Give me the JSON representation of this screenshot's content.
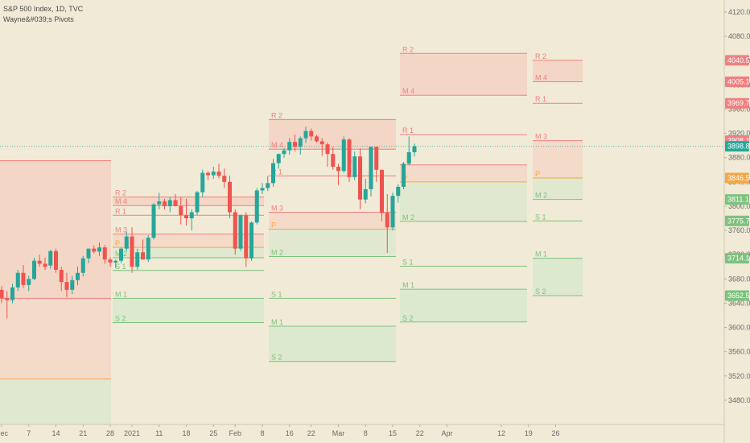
{
  "header": {
    "symbol_line": "S&P 500 Index, 1D, TVC",
    "indicator_line": "Wayne&#039;s Pivots"
  },
  "colors": {
    "background": "#f0ead6",
    "up_candle": "#26a69a",
    "down_candle": "#ef5350",
    "resistance": "#f08080",
    "support": "#7dc27d",
    "pivot": "#f5a742",
    "resistance_fill": "#f5cfc0",
    "support_fill": "#d6e8cc",
    "last_price_line": "#26a69a"
  },
  "chart_data": {
    "type": "candlestick",
    "y_axis": {
      "min": 3440,
      "max": 4140,
      "ticks": [
        3480,
        3520,
        3560,
        3600,
        3640,
        3680,
        3720,
        3760,
        3800,
        3840,
        3880,
        3920,
        3960,
        4000,
        4040,
        4080,
        4120
      ],
      "tick_labels": [
        "3480.0",
        "3520.0",
        "3560.0",
        "3600.0",
        "3640.0",
        "3680.0",
        "3720.0",
        "3760.0",
        "3800.0",
        "3840.0",
        "3880.0",
        "3920.0",
        "3960.0",
        "4000.0",
        "4040.0",
        "4080.0",
        "4120.0"
      ]
    },
    "x_axis": {
      "tick_labels": [
        "Dec",
        "7",
        "14",
        "21",
        "28",
        "2021",
        "11",
        "18",
        "25",
        "Feb",
        "8",
        "16",
        "22",
        "Mar",
        "8",
        "15",
        "22",
        "Apr",
        "12",
        "19",
        "26"
      ],
      "tick_index": [
        0,
        5,
        10,
        15,
        20,
        24,
        29,
        34,
        39,
        43,
        48,
        53,
        57,
        62,
        67,
        72,
        77,
        82,
        92,
        97,
        102
      ]
    },
    "candles": [
      {
        "o": 3662,
        "h": 3668,
        "l": 3640,
        "c": 3648
      },
      {
        "o": 3648,
        "h": 3660,
        "l": 3615,
        "c": 3645
      },
      {
        "o": 3645,
        "h": 3672,
        "l": 3640,
        "c": 3666
      },
      {
        "o": 3666,
        "h": 3695,
        "l": 3660,
        "c": 3690
      },
      {
        "o": 3690,
        "h": 3703,
        "l": 3665,
        "c": 3670
      },
      {
        "o": 3670,
        "h": 3685,
        "l": 3660,
        "c": 3680
      },
      {
        "o": 3680,
        "h": 3715,
        "l": 3678,
        "c": 3710
      },
      {
        "o": 3710,
        "h": 3720,
        "l": 3700,
        "c": 3705
      },
      {
        "o": 3705,
        "h": 3715,
        "l": 3695,
        "c": 3700
      },
      {
        "o": 3702,
        "h": 3728,
        "l": 3697,
        "c": 3726
      },
      {
        "o": 3726,
        "h": 3730,
        "l": 3690,
        "c": 3695
      },
      {
        "o": 3695,
        "h": 3700,
        "l": 3660,
        "c": 3675
      },
      {
        "o": 3675,
        "h": 3690,
        "l": 3650,
        "c": 3662
      },
      {
        "o": 3662,
        "h": 3685,
        "l": 3655,
        "c": 3678
      },
      {
        "o": 3678,
        "h": 3700,
        "l": 3670,
        "c": 3690
      },
      {
        "o": 3690,
        "h": 3718,
        "l": 3684,
        "c": 3714
      },
      {
        "o": 3714,
        "h": 3730,
        "l": 3706,
        "c": 3730
      },
      {
        "o": 3730,
        "h": 3735,
        "l": 3722,
        "c": 3725
      },
      {
        "o": 3725,
        "h": 3740,
        "l": 3718,
        "c": 3732
      },
      {
        "o": 3732,
        "h": 3736,
        "l": 3705,
        "c": 3712
      },
      {
        "o": 3712,
        "h": 3716,
        "l": 3700,
        "c": 3707
      },
      {
        "o": 3707,
        "h": 3712,
        "l": 3698,
        "c": 3710
      },
      {
        "o": 3710,
        "h": 3732,
        "l": 3706,
        "c": 3730
      },
      {
        "o": 3730,
        "h": 3758,
        "l": 3726,
        "c": 3750
      },
      {
        "o": 3750,
        "h": 3765,
        "l": 3690,
        "c": 3700
      },
      {
        "o": 3700,
        "h": 3730,
        "l": 3695,
        "c": 3724
      },
      {
        "o": 3724,
        "h": 3745,
        "l": 3715,
        "c": 3712
      },
      {
        "o": 3712,
        "h": 3752,
        "l": 3708,
        "c": 3748
      },
      {
        "o": 3748,
        "h": 3805,
        "l": 3745,
        "c": 3803
      },
      {
        "o": 3803,
        "h": 3822,
        "l": 3795,
        "c": 3808
      },
      {
        "o": 3808,
        "h": 3812,
        "l": 3795,
        "c": 3800
      },
      {
        "o": 3800,
        "h": 3815,
        "l": 3790,
        "c": 3810
      },
      {
        "o": 3810,
        "h": 3820,
        "l": 3800,
        "c": 3800
      },
      {
        "o": 3800,
        "h": 3815,
        "l": 3770,
        "c": 3785
      },
      {
        "o": 3785,
        "h": 3812,
        "l": 3768,
        "c": 3780
      },
      {
        "o": 3780,
        "h": 3795,
        "l": 3760,
        "c": 3790
      },
      {
        "o": 3790,
        "h": 3825,
        "l": 3785,
        "c": 3823
      },
      {
        "o": 3823,
        "h": 3860,
        "l": 3815,
        "c": 3855
      },
      {
        "o": 3855,
        "h": 3858,
        "l": 3843,
        "c": 3851
      },
      {
        "o": 3851,
        "h": 3865,
        "l": 3845,
        "c": 3857
      },
      {
        "o": 3857,
        "h": 3870,
        "l": 3846,
        "c": 3850
      },
      {
        "o": 3850,
        "h": 3862,
        "l": 3830,
        "c": 3840
      },
      {
        "o": 3840,
        "h": 3850,
        "l": 3780,
        "c": 3790
      },
      {
        "o": 3790,
        "h": 3795,
        "l": 3720,
        "c": 3730
      },
      {
        "o": 3730,
        "h": 3786,
        "l": 3726,
        "c": 3785
      },
      {
        "o": 3785,
        "h": 3790,
        "l": 3700,
        "c": 3714
      },
      {
        "o": 3714,
        "h": 3775,
        "l": 3710,
        "c": 3773
      },
      {
        "o": 3773,
        "h": 3830,
        "l": 3770,
        "c": 3826
      },
      {
        "o": 3826,
        "h": 3838,
        "l": 3820,
        "c": 3830
      },
      {
        "o": 3830,
        "h": 3850,
        "l": 3825,
        "c": 3838
      },
      {
        "o": 3838,
        "h": 3878,
        "l": 3832,
        "c": 3871
      },
      {
        "o": 3871,
        "h": 3887,
        "l": 3862,
        "c": 3886
      },
      {
        "o": 3886,
        "h": 3896,
        "l": 3880,
        "c": 3892
      },
      {
        "o": 3892,
        "h": 3912,
        "l": 3885,
        "c": 3906
      },
      {
        "o": 3906,
        "h": 3918,
        "l": 3890,
        "c": 3898
      },
      {
        "o": 3898,
        "h": 3915,
        "l": 3885,
        "c": 3912
      },
      {
        "o": 3912,
        "h": 3931,
        "l": 3904,
        "c": 3924
      },
      {
        "o": 3924,
        "h": 3928,
        "l": 3908,
        "c": 3915
      },
      {
        "o": 3915,
        "h": 3918,
        "l": 3905,
        "c": 3907
      },
      {
        "o": 3907,
        "h": 3912,
        "l": 3883,
        "c": 3902
      },
      {
        "o": 3902,
        "h": 3905,
        "l": 3865,
        "c": 3886
      },
      {
        "o": 3886,
        "h": 3898,
        "l": 3860,
        "c": 3865
      },
      {
        "o": 3865,
        "h": 3870,
        "l": 3835,
        "c": 3858
      },
      {
        "o": 3858,
        "h": 3915,
        "l": 3855,
        "c": 3910
      },
      {
        "o": 3910,
        "h": 3912,
        "l": 3840,
        "c": 3848
      },
      {
        "o": 3848,
        "h": 3890,
        "l": 3843,
        "c": 3882
      },
      {
        "o": 3882,
        "h": 3895,
        "l": 3795,
        "c": 3811
      },
      {
        "o": 3811,
        "h": 3845,
        "l": 3805,
        "c": 3828
      },
      {
        "o": 3828,
        "h": 3892,
        "l": 3816,
        "c": 3898
      },
      {
        "o": 3898,
        "h": 3895,
        "l": 3840,
        "c": 3860
      },
      {
        "o": 3860,
        "h": 3856,
        "l": 3775,
        "c": 3789
      },
      {
        "o": 3789,
        "h": 3820,
        "l": 3723,
        "c": 3765
      },
      {
        "o": 3765,
        "h": 3822,
        "l": 3760,
        "c": 3817
      },
      {
        "o": 3817,
        "h": 3836,
        "l": 3806,
        "c": 3832
      },
      {
        "o": 3832,
        "h": 3873,
        "l": 3828,
        "c": 3870
      },
      {
        "o": 3870,
        "h": 3915,
        "l": 3868,
        "c": 3889
      },
      {
        "o": 3889,
        "h": 3903,
        "l": 3882,
        "c": 3898.8
      }
    ],
    "pivot_periods": [
      {
        "levels": [
          {
            "label": "",
            "value": 3875,
            "kind": "res"
          },
          {
            "label": "",
            "value": 3648,
            "kind": "res"
          },
          {
            "label": "",
            "value": 3515,
            "kind": "piv"
          }
        ]
      },
      {
        "levels": [
          {
            "label": "R 2",
            "value": 3815,
            "kind": "res"
          },
          {
            "label": "M 4",
            "value": 3801,
            "kind": "res"
          },
          {
            "label": "R 1",
            "value": 3785,
            "kind": "res"
          },
          {
            "label": "M 3",
            "value": 3754,
            "kind": "res"
          },
          {
            "label": "P",
            "value": 3732,
            "kind": "piv"
          },
          {
            "label": "M 2",
            "value": 3715,
            "kind": "sup"
          },
          {
            "label": "S 1",
            "value": 3694,
            "kind": "sup"
          },
          {
            "label": "M 1",
            "value": 3648,
            "kind": "sup"
          },
          {
            "label": "S 2",
            "value": 3608,
            "kind": "sup"
          }
        ]
      },
      {
        "levels": [
          {
            "label": "R 2",
            "value": 3943,
            "kind": "res"
          },
          {
            "label": "M 4",
            "value": 3894,
            "kind": "res"
          },
          {
            "label": "R 1",
            "value": 3850,
            "kind": "res"
          },
          {
            "label": "M 3",
            "value": 3790,
            "kind": "res"
          },
          {
            "label": "P",
            "value": 3762,
            "kind": "piv"
          },
          {
            "label": "M 2",
            "value": 3717,
            "kind": "sup"
          },
          {
            "label": "S 1",
            "value": 3648,
            "kind": "sup"
          },
          {
            "label": "M 1",
            "value": 3602,
            "kind": "sup"
          },
          {
            "label": "S 2",
            "value": 3544,
            "kind": "sup"
          }
        ]
      },
      {
        "levels": [
          {
            "label": "R 2",
            "value": 4052,
            "kind": "res"
          },
          {
            "label": "M 4",
            "value": 3983,
            "kind": "res"
          },
          {
            "label": "R 1",
            "value": 3918,
            "kind": "res"
          },
          {
            "label": "",
            "value": 3868,
            "kind": "res"
          },
          {
            "label": "P",
            "value": 3840,
            "kind": "piv"
          },
          {
            "label": "M 2",
            "value": 3775,
            "kind": "sup"
          },
          {
            "label": "S 1",
            "value": 3701,
            "kind": "sup"
          },
          {
            "label": "M 1",
            "value": 3663,
            "kind": "sup"
          },
          {
            "label": "S 2",
            "value": 3609,
            "kind": "sup"
          }
        ]
      },
      {
        "levels": [
          {
            "label": "R 2",
            "value": 4040.5,
            "kind": "res"
          },
          {
            "label": "M 4",
            "value": 4005.1,
            "kind": "res"
          },
          {
            "label": "R 1",
            "value": 3969.7,
            "kind": "res"
          },
          {
            "label": "M 3",
            "value": 3908.1,
            "kind": "res"
          },
          {
            "label": "P",
            "value": 3846.5,
            "kind": "piv"
          },
          {
            "label": "M 2",
            "value": 3811.1,
            "kind": "sup"
          },
          {
            "label": "S 1",
            "value": 3775.7,
            "kind": "sup"
          },
          {
            "label": "M 1",
            "value": 3714.1,
            "kind": "sup"
          },
          {
            "label": "S 2",
            "value": 3652.5,
            "kind": "sup"
          }
        ]
      }
    ],
    "price_tags": [
      {
        "value": 4040.5,
        "label": "4040.5",
        "kind": "res"
      },
      {
        "value": 4005.1,
        "label": "4005.1",
        "kind": "res"
      },
      {
        "value": 3969.7,
        "label": "3969.7",
        "kind": "res"
      },
      {
        "value": 3908.1,
        "label": "3908.1",
        "kind": "res"
      },
      {
        "value": 3898.8,
        "label": "3898.8",
        "kind": "last"
      },
      {
        "value": 3846.5,
        "label": "3846.5",
        "kind": "piv"
      },
      {
        "value": 3811.1,
        "label": "3811.1",
        "kind": "sup"
      },
      {
        "value": 3775.7,
        "label": "3775.7",
        "kind": "sup"
      },
      {
        "value": 3714.1,
        "label": "3714.1",
        "kind": "sup"
      },
      {
        "value": 3652.5,
        "label": "3652.5",
        "kind": "sup"
      }
    ],
    "last_price": 3898.8,
    "grid": false
  }
}
